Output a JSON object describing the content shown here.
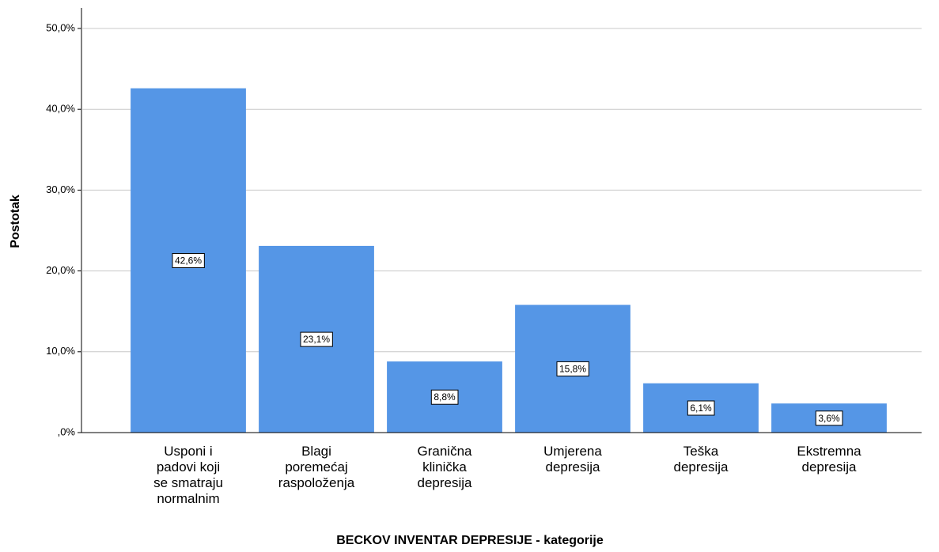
{
  "chart_data": {
    "type": "bar",
    "x_label": "BECKOV INVENTAR DEPRESIJE - kategorije",
    "y_label": "Postotak",
    "categories": [
      "Usponi i padovi koji se smatraju normalnim",
      "Blagi poremećaj raspoloženja",
      "Granična klinička depresija",
      "Umjerena depresija",
      "Teška depresija",
      "Ekstremna depresija"
    ],
    "values": [
      42.6,
      23.1,
      8.8,
      15.8,
      6.1,
      3.6
    ],
    "value_labels": [
      "42,6%",
      "23,1%",
      "8,8%",
      "15,8%",
      "6,1%",
      "3,6%"
    ],
    "color": "#5596e6",
    "ylim": [
      0,
      50
    ],
    "yticks": [
      {
        "value": 0,
        "label": ",0%"
      },
      {
        "value": 10,
        "label": "10,0%"
      },
      {
        "value": 20,
        "label": "20,0%"
      },
      {
        "value": 30,
        "label": "30,0%"
      },
      {
        "value": 40,
        "label": "40,0%"
      },
      {
        "value": 50,
        "label": "50,0%"
      }
    ],
    "grid": true
  }
}
